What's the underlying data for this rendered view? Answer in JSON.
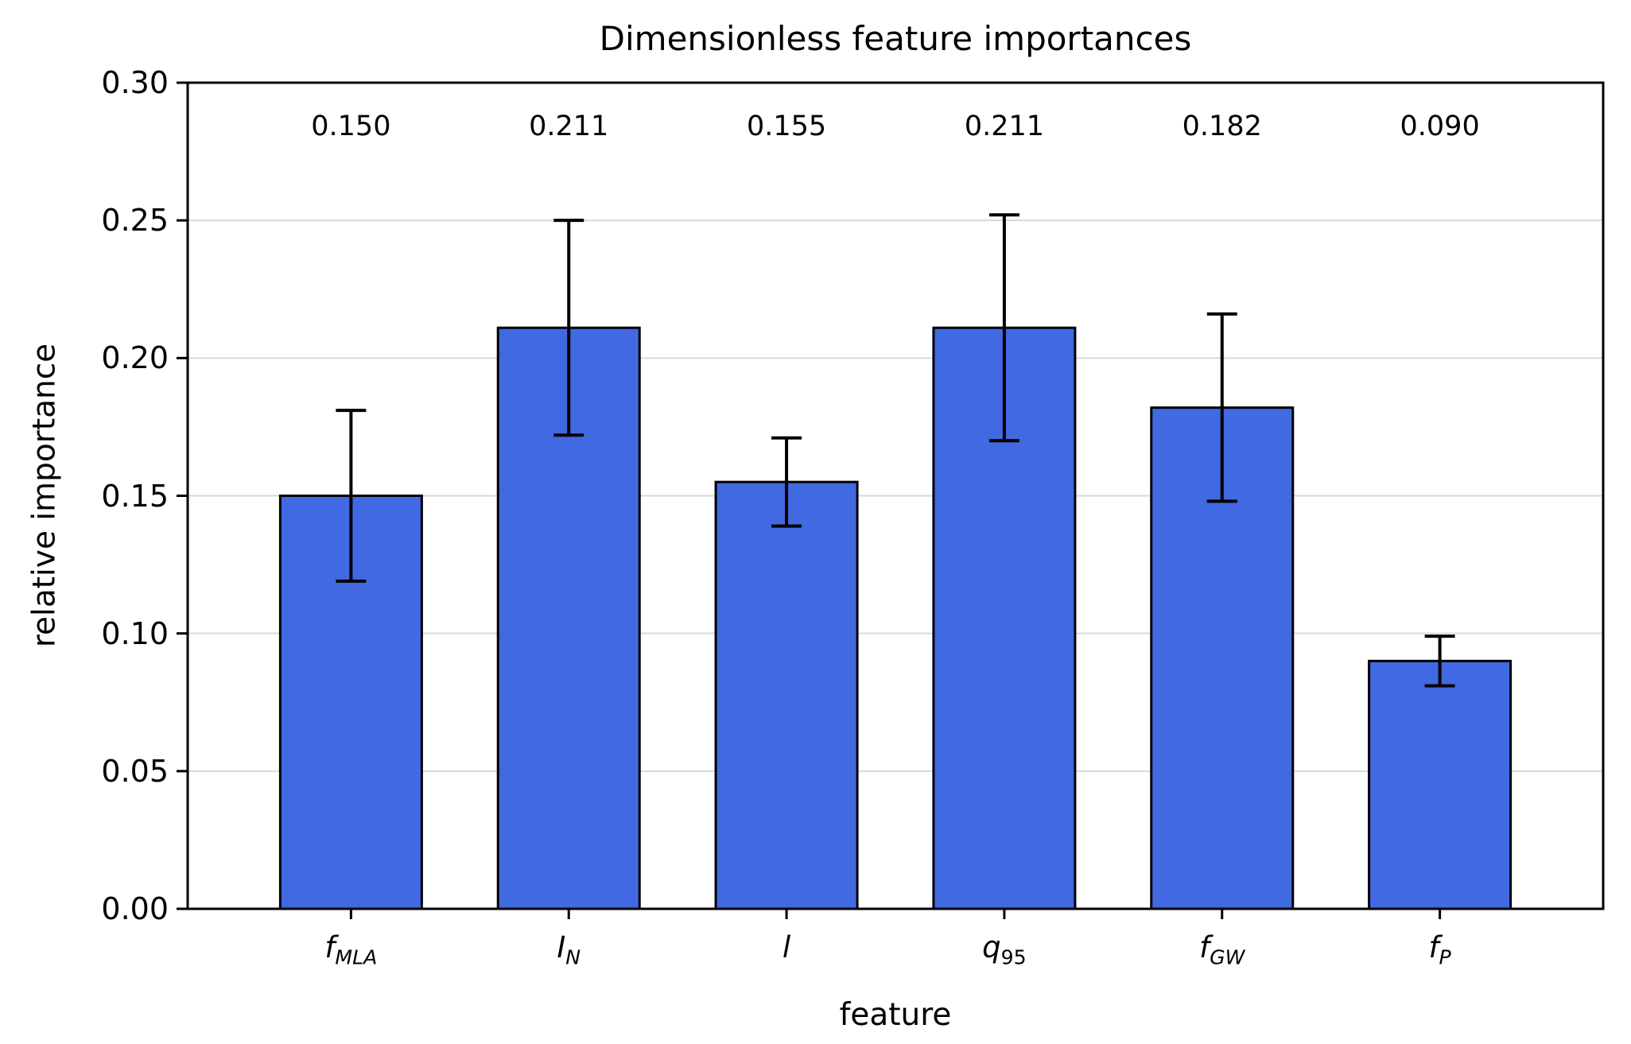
{
  "chart_data": {
    "type": "bar",
    "title": "Dimensionless feature importances",
    "xlabel": "feature",
    "ylabel": "relative importance",
    "categories": [
      {
        "base": "f",
        "sub": "MLA"
      },
      {
        "base": "I",
        "sub": "N"
      },
      {
        "base": "l",
        "sub": ""
      },
      {
        "base": "q",
        "sub": "95"
      },
      {
        "base": "f",
        "sub": "GW"
      },
      {
        "base": "f",
        "sub": "P"
      }
    ],
    "values": [
      0.15,
      0.211,
      0.155,
      0.211,
      0.182,
      0.09
    ],
    "errors": [
      0.031,
      0.039,
      0.016,
      0.041,
      0.034,
      0.009
    ],
    "value_labels": [
      "0.150",
      "0.211",
      "0.155",
      "0.211",
      "0.182",
      "0.090"
    ],
    "ytick_labels": [
      "0.00",
      "0.05",
      "0.10",
      "0.15",
      "0.20",
      "0.25",
      "0.30"
    ],
    "ytick_values": [
      0.0,
      0.05,
      0.1,
      0.15,
      0.2,
      0.25,
      0.3
    ],
    "ylim": [
      0,
      0.3
    ],
    "xlim": [
      -0.75,
      5.75
    ],
    "bar_width_units": 0.65,
    "annotation_y": 0.284,
    "grid": true,
    "legend": "none",
    "colors": {
      "bar_fill": "#4169E1",
      "bar_edge": "#000000",
      "grid_line": "#d9d9d9",
      "spine": "#000000",
      "text": "#000000"
    }
  }
}
